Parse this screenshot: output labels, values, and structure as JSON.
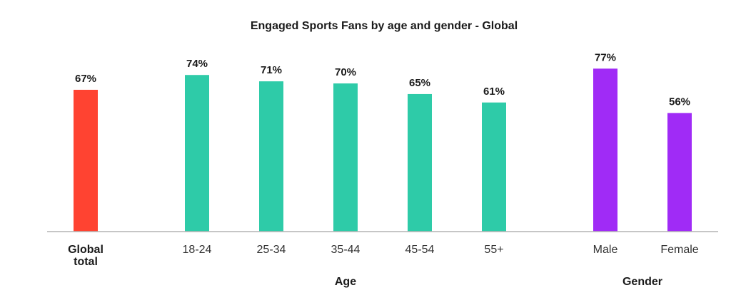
{
  "chart_data": {
    "type": "bar",
    "title": "Engaged Sports Fans by age and gender - Global",
    "categories": [
      "Global total",
      "18-24",
      "25-34",
      "35-44",
      "45-54",
      "55+",
      "Male",
      "Female"
    ],
    "values": [
      67,
      74,
      71,
      70,
      65,
      61,
      77,
      56
    ],
    "data_labels": [
      "67%",
      "74%",
      "71%",
      "70%",
      "65%",
      "61%",
      "77%",
      "56%"
    ],
    "unit": "%",
    "groups": [
      {
        "name": "",
        "categories": [
          "Global total"
        ],
        "color": "#ff4331",
        "bold_tick": true
      },
      {
        "name": "Age",
        "categories": [
          "18-24",
          "25-34",
          "35-44",
          "45-54",
          "55+"
        ],
        "color": "#2ecba8",
        "bold_tick": false
      },
      {
        "name": "Gender",
        "categories": [
          "Male",
          "Female"
        ],
        "color": "#a02bf6",
        "bold_tick": false
      }
    ],
    "ylim": [
      0,
      100
    ],
    "grid": false,
    "legend": "none"
  }
}
